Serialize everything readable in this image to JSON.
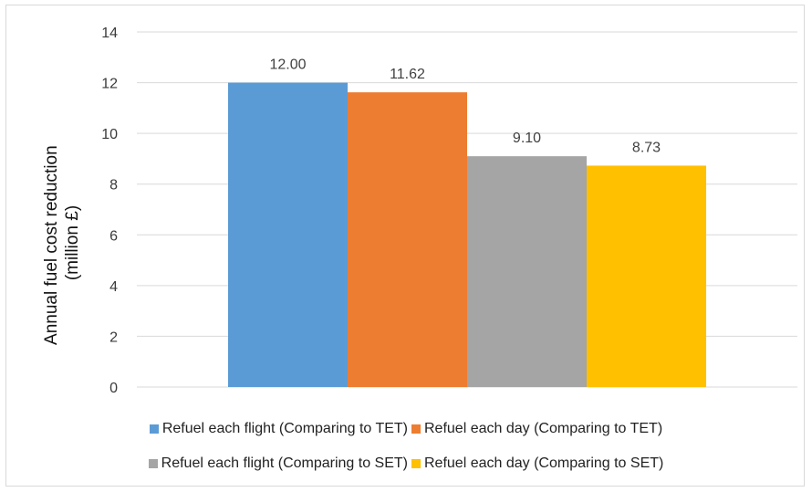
{
  "chart_data": {
    "type": "bar",
    "categories": [
      ""
    ],
    "series": [
      {
        "name": "Refuel each flight (Comparing to TET)",
        "values": [
          12.0
        ],
        "label": "12.00",
        "color": "#5b9bd5"
      },
      {
        "name": "Refuel each day (Comparing to TET)",
        "values": [
          11.62
        ],
        "label": "11.62",
        "color": "#ed7d31"
      },
      {
        "name": "Refuel each flight (Comparing to SET)",
        "values": [
          9.1
        ],
        "label": "9.10",
        "color": "#a5a5a5"
      },
      {
        "name": "Refuel each day (Comparing to SET)",
        "values": [
          8.73
        ],
        "label": "8.73",
        "color": "#ffc000"
      }
    ],
    "title": "",
    "xlabel": "",
    "ylabel_lines": [
      "Annual fuel cost reduction",
      "(million £)"
    ],
    "ylim": [
      0,
      14
    ],
    "yticks": [
      "0",
      "2",
      "4",
      "6",
      "8",
      "10",
      "12",
      "14"
    ],
    "grid": true,
    "legend_position": "bottom"
  }
}
